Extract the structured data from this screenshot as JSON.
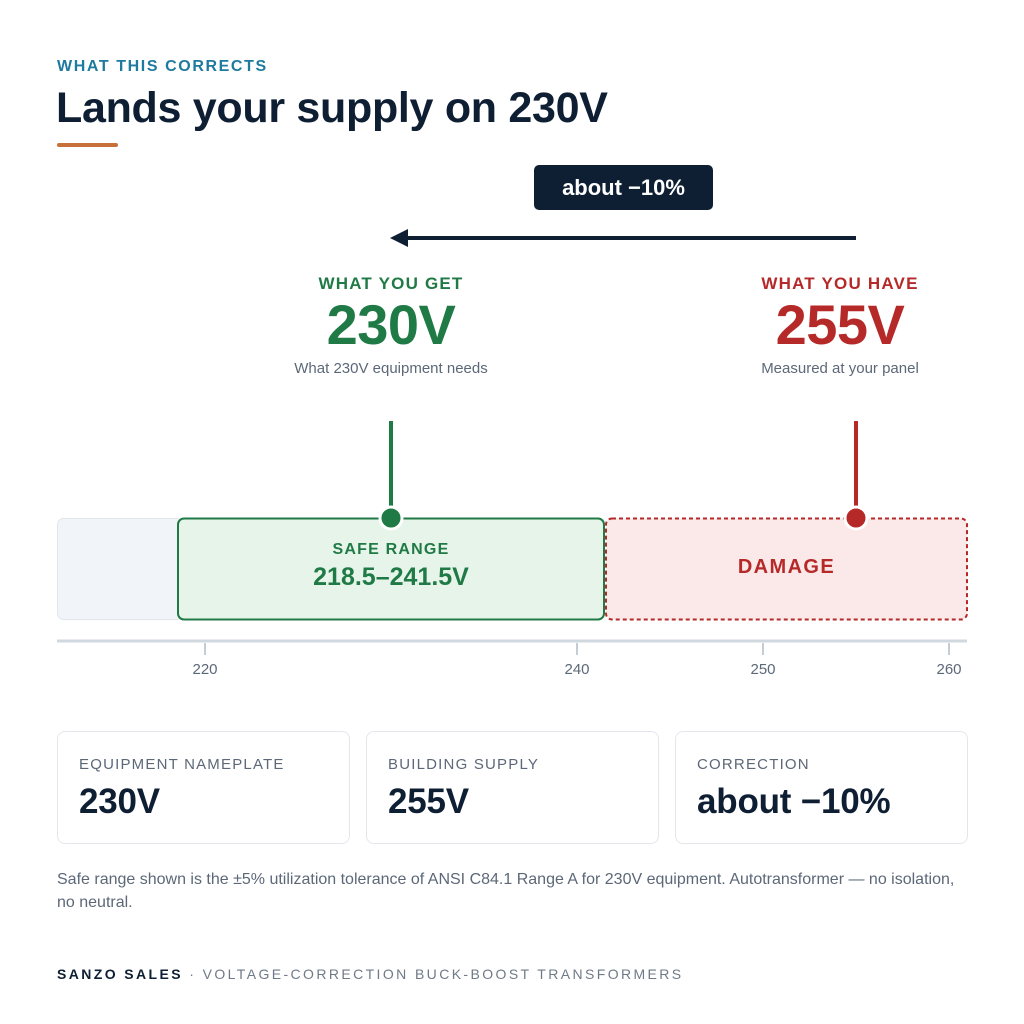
{
  "header": {
    "eyebrow": "WHAT THIS CORRECTS",
    "title": "Lands your supply on 230V"
  },
  "correction_pill": "about −10%",
  "target": {
    "label": "WHAT YOU GET",
    "value": "230V",
    "voltage": 230,
    "caption": "What 230V equipment needs"
  },
  "current": {
    "label": "WHAT YOU HAVE",
    "value": "255V",
    "voltage": 255,
    "caption": "Measured at your panel"
  },
  "scale": {
    "ticks": [
      "220",
      "240",
      "250",
      "260"
    ],
    "safe_range": {
      "label": "SAFE RANGE",
      "text": "218.5–241.5V",
      "min": 218.5,
      "max": 241.5
    },
    "damage_zone": {
      "label": "DAMAGE"
    }
  },
  "cards": [
    {
      "label": "EQUIPMENT NAMEPLATE",
      "value": "230V"
    },
    {
      "label": "BUILDING SUPPLY",
      "value": "255V"
    },
    {
      "label": "CORRECTION",
      "value": "about −10%"
    }
  ],
  "note": "Safe range shown is the ±5% utilization tolerance of ANSI C84.1 Range A for 230V equipment. Autotransformer — no isolation, no neutral.",
  "footer": {
    "brand": "SANZO SALES",
    "separator": "·",
    "tagline": "VOLTAGE-CORRECTION BUCK-BOOST TRANSFORMERS"
  },
  "colors": {
    "navy": "#0f1f33",
    "green": "#1f7a45",
    "red": "#b52a28",
    "accent": "#c8703a",
    "eyebrow": "#1e7a9e"
  }
}
